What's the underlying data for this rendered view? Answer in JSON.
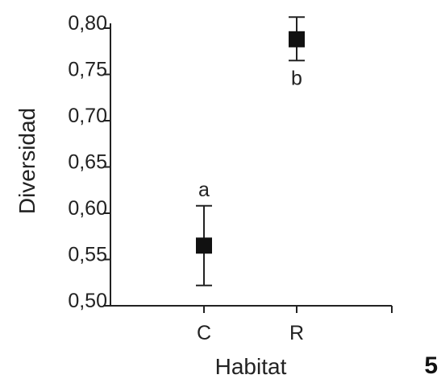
{
  "chart_data": {
    "type": "scatter",
    "xlabel": "Habitat",
    "ylabel": "Diversidad",
    "categories": [
      "C",
      "R"
    ],
    "ylim": [
      0.5,
      0.8
    ],
    "y_ticks": [
      "0,50",
      "0,55",
      "0,60",
      "0,65",
      "0,70",
      "0,75",
      "0,80"
    ],
    "y_tick_values": [
      0.5,
      0.55,
      0.6,
      0.65,
      0.7,
      0.75,
      0.8
    ],
    "grid": false,
    "points": [
      {
        "category": "C",
        "value": 0.565,
        "err_low": 0.522,
        "err_high": 0.608,
        "label": "a"
      },
      {
        "category": "R",
        "value": 0.788,
        "err_low": 0.765,
        "err_high": 0.812,
        "label": "b"
      }
    ]
  },
  "panel_label": "5"
}
